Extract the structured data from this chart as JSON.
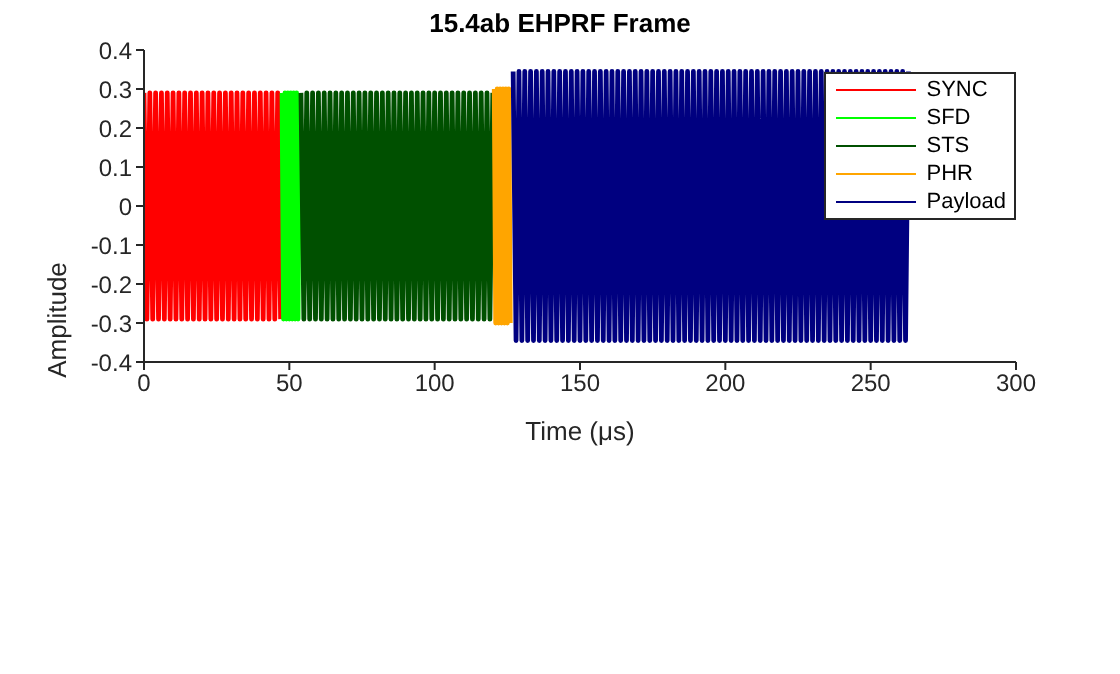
{
  "chart_data": {
    "type": "line",
    "title": "15.4ab EHPRF Frame",
    "xlabel": "Time  (μs)",
    "ylabel": "Amplitude",
    "xlim": [
      0,
      300
    ],
    "xticks": [
      0,
      50,
      100,
      150,
      200,
      250,
      300
    ],
    "ylim": [
      -0.4,
      0.4
    ],
    "yticks": [
      -0.4,
      -0.3,
      -0.2,
      -0.1,
      0,
      0.1,
      0.2,
      0.3,
      0.4
    ],
    "grid": false,
    "legend": "top right",
    "series": [
      {
        "name": "SYNC",
        "color": "#ff0000",
        "x": [
          0,
          1,
          2,
          3,
          4,
          5,
          6,
          7,
          8,
          9,
          10,
          11,
          12,
          13,
          14,
          15,
          16,
          17,
          18,
          19,
          20,
          21,
          22,
          23,
          24,
          25,
          26,
          27,
          28,
          29,
          30,
          31,
          32,
          33,
          34,
          35,
          36,
          37,
          38,
          39,
          40,
          41,
          42,
          43,
          44,
          45,
          46,
          47
        ],
        "values": [
          0.29,
          -0.29,
          0.29,
          -0.29,
          0.29,
          -0.29,
          0.29,
          -0.29,
          0.29,
          -0.29,
          0.29,
          -0.29,
          0.29,
          -0.29,
          0.29,
          -0.29,
          0.29,
          -0.29,
          0.29,
          -0.29,
          0.29,
          -0.29,
          0.29,
          -0.29,
          0.29,
          -0.29,
          0.29,
          -0.29,
          0.29,
          -0.29,
          0.29,
          -0.29,
          0.29,
          -0.29,
          0.29,
          -0.29,
          0.29,
          -0.29,
          0.29,
          -0.29,
          0.29,
          -0.29,
          0.29,
          -0.29,
          0.29,
          -0.29,
          0.29,
          -0.29
        ]
      },
      {
        "name": "SFD",
        "color": "#00ff00",
        "x": [
          47.5,
          48,
          48.5,
          49,
          49.5,
          50,
          50.5,
          51,
          51.5,
          52,
          52.5,
          53,
          53.5
        ],
        "values": [
          0.29,
          -0.29,
          0.29,
          -0.29,
          0.29,
          -0.29,
          0.29,
          -0.29,
          0.29,
          -0.29,
          0.29,
          -0.29,
          0.29
        ]
      },
      {
        "name": "STS",
        "color": "#005000",
        "x": [
          54,
          55,
          56,
          57,
          58,
          59,
          60,
          61,
          62,
          63,
          64,
          65,
          66,
          67,
          68,
          69,
          70,
          71,
          72,
          73,
          74,
          75,
          76,
          77,
          78,
          79,
          80,
          81,
          82,
          83,
          84,
          85,
          86,
          87,
          88,
          89,
          90,
          91,
          92,
          93,
          94,
          95,
          96,
          97,
          98,
          99,
          100,
          101,
          102,
          103,
          104,
          105,
          106,
          107,
          108,
          109,
          110,
          111,
          112,
          113,
          114,
          115,
          116,
          117,
          118,
          119,
          120
        ],
        "values": [
          0.29,
          -0.29,
          0.29,
          -0.29,
          0.29,
          -0.29,
          0.29,
          -0.29,
          0.29,
          -0.29,
          0.29,
          -0.29,
          0.29,
          -0.29,
          0.29,
          -0.29,
          0.29,
          -0.29,
          0.29,
          -0.29,
          0.29,
          -0.29,
          0.29,
          -0.29,
          0.29,
          -0.29,
          0.29,
          -0.29,
          0.29,
          -0.29,
          0.29,
          -0.29,
          0.29,
          -0.29,
          0.29,
          -0.29,
          0.29,
          -0.29,
          0.29,
          -0.29,
          0.29,
          -0.29,
          0.29,
          -0.29,
          0.29,
          -0.29,
          0.29,
          -0.29,
          0.29,
          -0.29,
          0.29,
          -0.29,
          0.29,
          -0.29,
          0.29,
          -0.29,
          0.29,
          -0.29,
          0.29,
          -0.29,
          0.29,
          -0.29,
          0.29,
          -0.29,
          0.29,
          -0.29,
          0.29
        ]
      },
      {
        "name": "PHR",
        "color": "#ffa500",
        "x": [
          120.5,
          121,
          121.5,
          122,
          122.5,
          123,
          123.5,
          124,
          124.5,
          125,
          125.5,
          126
        ],
        "values": [
          0.3,
          -0.3,
          0.3,
          -0.3,
          0.3,
          -0.3,
          0.3,
          -0.3,
          0.3,
          -0.3,
          0.3,
          -0.3
        ]
      },
      {
        "name": "Payload",
        "color": "#000080",
        "x": [
          127,
          128,
          129,
          130,
          131,
          132,
          133,
          134,
          135,
          136,
          137,
          138,
          139,
          140,
          141,
          142,
          143,
          144,
          145,
          146,
          147,
          148,
          149,
          150,
          151,
          152,
          153,
          154,
          155,
          156,
          157,
          158,
          159,
          160,
          161,
          162,
          163,
          164,
          165,
          166,
          167,
          168,
          169,
          170,
          171,
          172,
          173,
          174,
          175,
          176,
          177,
          178,
          179,
          180,
          181,
          182,
          183,
          184,
          185,
          186,
          187,
          188,
          189,
          190,
          191,
          192,
          193,
          194,
          195,
          196,
          197,
          198,
          199,
          200,
          201,
          202,
          203,
          204,
          205,
          206,
          207,
          208,
          209,
          210,
          211,
          212,
          213,
          214,
          215,
          216,
          217,
          218,
          219,
          220,
          221,
          222,
          223,
          224,
          225,
          226,
          227,
          228,
          229,
          230,
          231,
          232,
          233,
          234,
          235,
          236,
          237,
          238,
          239,
          240,
          241,
          242,
          243,
          244,
          245,
          246,
          247,
          248,
          249,
          250,
          251,
          252,
          253,
          254,
          255,
          256,
          257,
          258,
          259,
          260,
          261,
          262,
          263
        ],
        "values": [
          0.345,
          -0.345,
          0.345,
          -0.345,
          0.345,
          -0.345,
          0.345,
          -0.345,
          0.345,
          -0.345,
          0.345,
          -0.345,
          0.345,
          -0.345,
          0.345,
          -0.345,
          0.345,
          -0.345,
          0.345,
          -0.345,
          0.345,
          -0.345,
          0.345,
          -0.345,
          0.345,
          -0.345,
          0.345,
          -0.345,
          0.345,
          -0.345,
          0.345,
          -0.345,
          0.345,
          -0.345,
          0.345,
          -0.345,
          0.345,
          -0.345,
          0.345,
          -0.345,
          0.345,
          -0.345,
          0.345,
          -0.345,
          0.345,
          -0.345,
          0.345,
          -0.345,
          0.345,
          -0.345,
          0.345,
          -0.345,
          0.345,
          -0.345,
          0.345,
          -0.345,
          0.345,
          -0.345,
          0.345,
          -0.345,
          0.345,
          -0.345,
          0.345,
          -0.345,
          0.345,
          -0.345,
          0.345,
          -0.345,
          0.345,
          -0.345,
          0.345,
          -0.345,
          0.345,
          -0.345,
          0.345,
          -0.345,
          0.345,
          -0.345,
          0.345,
          -0.345,
          0.345,
          -0.345,
          0.345,
          -0.345,
          0.345,
          -0.345,
          0.345,
          -0.345,
          0.345,
          -0.345,
          0.345,
          -0.345,
          0.345,
          -0.345,
          0.345,
          -0.345,
          0.345,
          -0.345,
          0.345,
          -0.345,
          0.345,
          -0.345,
          0.345,
          -0.345,
          0.345,
          -0.345,
          0.345,
          -0.345,
          0.345,
          -0.345,
          0.345,
          -0.345,
          0.345,
          -0.345,
          0.345,
          -0.345,
          0.345,
          -0.345,
          0.345,
          -0.345,
          0.345,
          -0.345,
          0.345,
          -0.345,
          0.345,
          -0.345,
          0.345,
          -0.345,
          0.345,
          -0.345,
          0.345,
          -0.345,
          0.345,
          -0.345,
          0.345,
          -0.345,
          0.345
        ]
      }
    ]
  }
}
